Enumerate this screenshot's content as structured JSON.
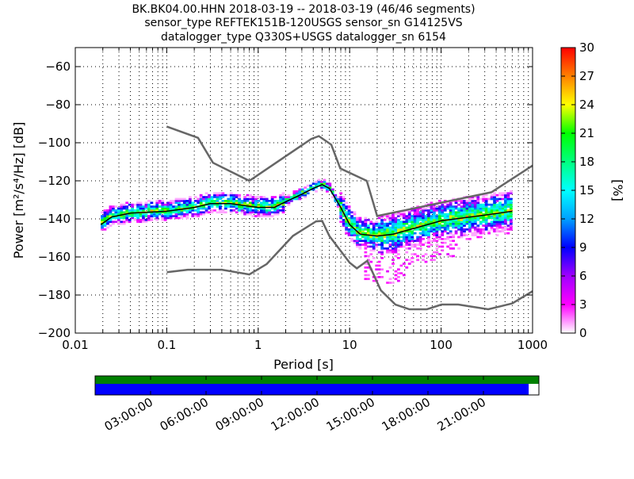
{
  "chart_data": {
    "type": "heatmap",
    "title_lines": [
      "BK.BK04.00.HHN   2018-03-19 -- 2018-03-19  (46/46 segments)",
      "sensor_type REFTEK151B-120USGS sensor_sn G14125VS",
      "datalogger_type Q330S+USGS datalogger_sn 6154"
    ],
    "xlabel": "Period [s]",
    "ylabel": "Power [m²/s⁴/Hz] [dB]",
    "xscale": "log",
    "xlim": [
      0.01,
      1000
    ],
    "ylim": [
      -200,
      -50
    ],
    "x_ticks": [
      {
        "v": 0.01,
        "label": "0.01"
      },
      {
        "v": 0.1,
        "label": "0.1"
      },
      {
        "v": 1,
        "label": "1"
      },
      {
        "v": 10,
        "label": "10"
      },
      {
        "v": 100,
        "label": "100"
      },
      {
        "v": 1000,
        "label": "1000"
      }
    ],
    "y_ticks": [
      {
        "v": -60,
        "label": "−60"
      },
      {
        "v": -80,
        "label": "−80"
      },
      {
        "v": -100,
        "label": "−100"
      },
      {
        "v": -120,
        "label": "−120"
      },
      {
        "v": -140,
        "label": "−140"
      },
      {
        "v": -160,
        "label": "−160"
      },
      {
        "v": -180,
        "label": "−180"
      },
      {
        "v": -200,
        "label": "−200"
      }
    ],
    "grid": true,
    "noise_model_high": [
      [
        0.1,
        -91.5
      ],
      [
        0.22,
        -97.4
      ],
      [
        0.32,
        -110.5
      ],
      [
        0.8,
        -120
      ],
      [
        3.8,
        -98
      ],
      [
        4.6,
        -96.5
      ],
      [
        6.3,
        -101
      ],
      [
        7.9,
        -113.5
      ],
      [
        15.4,
        -120
      ],
      [
        20,
        -138.5
      ],
      [
        354.8,
        -126
      ],
      [
        1000,
        -112
      ]
    ],
    "noise_model_low": [
      [
        0.1,
        -168
      ],
      [
        0.17,
        -166.7
      ],
      [
        0.4,
        -166.7
      ],
      [
        0.8,
        -169.2
      ],
      [
        1.24,
        -163.7
      ],
      [
        2.4,
        -148.9
      ],
      [
        4.3,
        -141.3
      ],
      [
        5,
        -141.1
      ],
      [
        6,
        -149
      ],
      [
        10,
        -163
      ],
      [
        12,
        -166
      ],
      [
        15.6,
        -162
      ],
      [
        21.9,
        -177.5
      ],
      [
        31.6,
        -185
      ],
      [
        45,
        -187.5
      ],
      [
        70,
        -187.5
      ],
      [
        101,
        -185
      ],
      [
        154,
        -185
      ],
      [
        328,
        -187.5
      ],
      [
        600,
        -184.4
      ],
      [
        1000,
        -178
      ]
    ],
    "mean_curve": [
      [
        0.019,
        -143
      ],
      [
        0.025,
        -139
      ],
      [
        0.04,
        -137
      ],
      [
        0.1,
        -136
      ],
      [
        0.2,
        -134
      ],
      [
        0.3,
        -132
      ],
      [
        0.5,
        -132
      ],
      [
        1,
        -134
      ],
      [
        1.5,
        -134
      ],
      [
        2,
        -131
      ],
      [
        3,
        -127
      ],
      [
        4,
        -124
      ],
      [
        5,
        -122
      ],
      [
        6,
        -124
      ],
      [
        8,
        -134
      ],
      [
        10,
        -143
      ],
      [
        13,
        -148
      ],
      [
        20,
        -149
      ],
      [
        30,
        -148
      ],
      [
        60,
        -144
      ],
      [
        100,
        -141
      ],
      [
        300,
        -138
      ],
      [
        600,
        -136
      ]
    ],
    "colorbar": {
      "label": "[%]",
      "min": 0,
      "max": 30,
      "ticks": [
        0,
        3,
        6,
        9,
        12,
        15,
        18,
        21,
        24,
        27,
        30
      ],
      "colors": [
        "#ffffff",
        "#ff00ff",
        "#a000ff",
        "#0000ff",
        "#00a0ff",
        "#00ffff",
        "#00ff80",
        "#00ff00",
        "#ffff00",
        "#ff8000",
        "#ff0000"
      ]
    },
    "time_axis": {
      "labels": [
        "03:00:00",
        "06:00:00",
        "09:00:00",
        "12:00:00",
        "15:00:00",
        "18:00:00",
        "21:00:00"
      ],
      "coverage_colors": {
        "top": "#008000",
        "bottom": "#0000ff"
      },
      "coverage_fraction": 0.977
    }
  }
}
